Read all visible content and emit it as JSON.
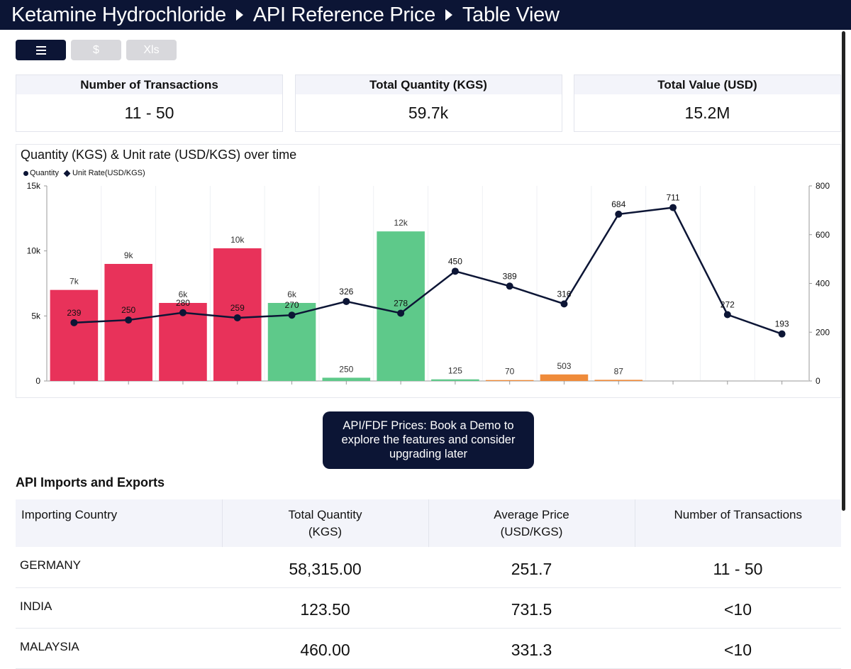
{
  "breadcrumb": [
    "Ketamine Hydrochloride",
    "API Reference Price",
    "Table View"
  ],
  "toolbar": {
    "table_icon": "menu-icon",
    "dollar_label": "$",
    "xls_label": "Xls"
  },
  "cards": [
    {
      "title": "Number of Transactions",
      "value": "11 - 50"
    },
    {
      "title": "Total Quantity (KGS)",
      "value": "59.7k"
    },
    {
      "title": "Total Value (USD)",
      "value": "15.2M"
    }
  ],
  "chart_data": {
    "type": "bar+line",
    "title": "Quantity (KGS) & Unit rate (USD/KGS) over time",
    "legend": [
      "Quantity",
      "Unit Rate(USD/KGS)"
    ],
    "legend_position": "top-left",
    "y_left": {
      "range": [
        0,
        15000
      ],
      "ticks": [
        "0",
        "5k",
        "10k",
        "15k"
      ]
    },
    "y_right": {
      "range": [
        0,
        800
      ],
      "ticks": [
        "0",
        "200",
        "400",
        "600",
        "800"
      ]
    },
    "bars": [
      {
        "value": 7000,
        "label": "7k",
        "color": "#e8325a"
      },
      {
        "value": 9000,
        "label": "9k",
        "color": "#e8325a"
      },
      {
        "value": 6000,
        "label": "6k",
        "color": "#e8325a"
      },
      {
        "value": 10200,
        "label": "10k",
        "color": "#e8325a"
      },
      {
        "value": 6000,
        "label": "6k",
        "color": "#5ec98a"
      },
      {
        "value": 250,
        "label": "250",
        "color": "#5ec98a"
      },
      {
        "value": 11500,
        "label": "12k",
        "color": "#5ec98a"
      },
      {
        "value": 125,
        "label": "125",
        "color": "#5ec98a"
      },
      {
        "value": 70,
        "label": "70",
        "color": "#ef8b3a"
      },
      {
        "value": 503,
        "label": "503",
        "color": "#ef8b3a"
      },
      {
        "value": 87,
        "label": "87",
        "color": "#ef8b3a"
      },
      {
        "value": 0,
        "label": "",
        "color": "#ef8b3a"
      },
      {
        "value": 0,
        "label": "",
        "color": "#ef8b3a"
      },
      {
        "value": 0,
        "label": "",
        "color": "#ef8b3a"
      }
    ],
    "rate": [
      239,
      250,
      280,
      259,
      270,
      326,
      278,
      450,
      389,
      316,
      684,
      711,
      272,
      193
    ],
    "grid": true
  },
  "demo_banner": "API/FDF Prices: Book a Demo to explore the features and consider upgrading later",
  "section_title": "API Imports and Exports",
  "table": {
    "headers": [
      [
        "Importing Country"
      ],
      [
        "Total Quantity",
        "(KGS)"
      ],
      [
        "Average Price",
        "(USD/KGS)"
      ],
      [
        "Number of Transactions"
      ]
    ],
    "rows": [
      [
        "GERMANY",
        "58,315.00",
        "251.7",
        "11 - 50"
      ],
      [
        "INDIA",
        "123.50",
        "731.5",
        "<10"
      ],
      [
        "MALAYSIA",
        "460.00",
        "331.3",
        "<10"
      ]
    ]
  },
  "colors": {
    "navy": "#0c1535",
    "red": "#e8325a",
    "green": "#5ec98a",
    "orange": "#ef8b3a"
  }
}
